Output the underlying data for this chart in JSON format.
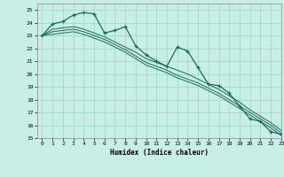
{
  "xlabel": "Humidex (Indice chaleur)",
  "xlim": [
    -0.5,
    23
  ],
  "ylim": [
    15,
    25.5
  ],
  "yticks": [
    15,
    16,
    17,
    18,
    19,
    20,
    21,
    22,
    23,
    24,
    25
  ],
  "xticks": [
    0,
    1,
    2,
    3,
    4,
    5,
    6,
    7,
    8,
    9,
    10,
    11,
    12,
    13,
    14,
    15,
    16,
    17,
    18,
    19,
    20,
    21,
    22,
    23
  ],
  "background_color": "#c8eee8",
  "grid_color": "#a0d8cc",
  "line_color": "#1a6b5a",
  "series": [
    {
      "x": [
        0,
        1,
        2,
        3,
        4,
        5,
        6,
        7,
        8,
        9,
        10,
        11,
        12,
        13,
        14,
        15,
        16,
        17,
        18,
        19,
        20,
        21,
        22,
        23
      ],
      "y": [
        23.0,
        23.9,
        24.1,
        24.6,
        24.8,
        24.7,
        23.2,
        23.4,
        23.7,
        22.2,
        21.5,
        21.0,
        20.6,
        22.1,
        21.8,
        20.5,
        19.2,
        19.1,
        18.5,
        17.5,
        16.5,
        16.3,
        15.5,
        15.3
      ],
      "marker": true
    },
    {
      "x": [
        0,
        1,
        2,
        3,
        4,
        5,
        6,
        7,
        8,
        9,
        10,
        11,
        12,
        13,
        14,
        15,
        16,
        17,
        18,
        19,
        20,
        21,
        22,
        23
      ],
      "y": [
        23.0,
        23.5,
        23.6,
        23.7,
        23.5,
        23.2,
        22.9,
        22.5,
        22.1,
        21.7,
        21.2,
        20.9,
        20.6,
        20.3,
        20.0,
        19.6,
        19.2,
        18.8,
        18.3,
        17.8,
        17.2,
        16.7,
        16.2,
        15.6
      ],
      "marker": false
    },
    {
      "x": [
        0,
        1,
        2,
        3,
        4,
        5,
        6,
        7,
        8,
        9,
        10,
        11,
        12,
        13,
        14,
        15,
        16,
        17,
        18,
        19,
        20,
        21,
        22,
        23
      ],
      "y": [
        23.0,
        23.3,
        23.4,
        23.5,
        23.3,
        23.0,
        22.7,
        22.3,
        21.9,
        21.4,
        20.9,
        20.6,
        20.3,
        19.9,
        19.6,
        19.3,
        18.9,
        18.5,
        18.0,
        17.5,
        17.0,
        16.5,
        16.0,
        15.4
      ],
      "marker": false
    },
    {
      "x": [
        0,
        1,
        2,
        3,
        4,
        5,
        6,
        7,
        8,
        9,
        10,
        11,
        12,
        13,
        14,
        15,
        16,
        17,
        18,
        19,
        20,
        21,
        22,
        23
      ],
      "y": [
        23.0,
        23.1,
        23.2,
        23.3,
        23.1,
        22.8,
        22.5,
        22.1,
        21.7,
        21.2,
        20.7,
        20.4,
        20.1,
        19.7,
        19.4,
        19.1,
        18.7,
        18.3,
        17.8,
        17.3,
        16.8,
        16.3,
        15.8,
        15.2
      ],
      "marker": false
    }
  ]
}
